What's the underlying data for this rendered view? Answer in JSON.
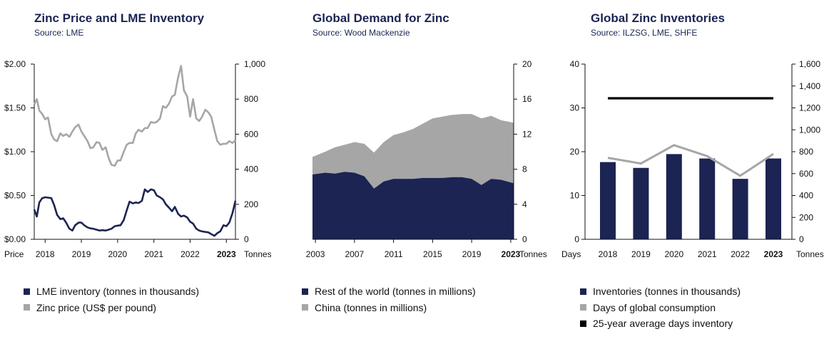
{
  "colors": {
    "navy": "#1b2452",
    "gray": "#a6a6a6",
    "black": "#000000"
  },
  "chart_data": [
    {
      "type": "line",
      "title": "Zinc Price and LME Inventory",
      "subtitle": "Source: LME",
      "left_axis_label": "Price",
      "right_axis_label": "Tonnes",
      "left_ticks": [
        "$0.00",
        "$0.50",
        "$1.00",
        "$1.50",
        "$2.00"
      ],
      "left_ylim": [
        0,
        2
      ],
      "right_ticks": [
        "0",
        "200",
        "400",
        "600",
        "800",
        "1,000"
      ],
      "right_ylim": [
        0,
        1000
      ],
      "x_ticks": [
        "2018",
        "2019",
        "2020",
        "2021",
        "2022",
        "2023"
      ],
      "x_bold": "2023",
      "xlim": [
        2017.7,
        2023.25
      ],
      "series": [
        {
          "name": "LME inventory (tonnes in thousands)",
          "axis": "right",
          "color_key": "navy",
          "x": [
            2017.7,
            2017.77,
            2017.84,
            2017.92,
            2018.0,
            2018.08,
            2018.17,
            2018.25,
            2018.33,
            2018.42,
            2018.5,
            2018.58,
            2018.67,
            2018.75,
            2018.83,
            2018.92,
            2019.0,
            2019.08,
            2019.17,
            2019.25,
            2019.33,
            2019.42,
            2019.5,
            2019.58,
            2019.67,
            2019.75,
            2019.83,
            2019.92,
            2020.0,
            2020.08,
            2020.17,
            2020.25,
            2020.33,
            2020.42,
            2020.5,
            2020.58,
            2020.67,
            2020.75,
            2020.83,
            2020.92,
            2021.0,
            2021.08,
            2021.17,
            2021.25,
            2021.33,
            2021.42,
            2021.5,
            2021.58,
            2021.67,
            2021.75,
            2021.83,
            2021.92,
            2022.0,
            2022.08,
            2022.17,
            2022.25,
            2022.33,
            2022.42,
            2022.5,
            2022.58,
            2022.67,
            2022.75,
            2022.83,
            2022.92,
            2023.0,
            2023.08,
            2023.17,
            2023.25
          ],
          "values": [
            170,
            130,
            210,
            235,
            240,
            238,
            235,
            195,
            140,
            115,
            120,
            95,
            60,
            50,
            80,
            95,
            95,
            80,
            68,
            62,
            60,
            55,
            50,
            52,
            50,
            55,
            60,
            75,
            78,
            80,
            110,
            165,
            215,
            205,
            210,
            207,
            220,
            285,
            270,
            285,
            280,
            250,
            240,
            228,
            200,
            180,
            160,
            185,
            145,
            130,
            135,
            125,
            100,
            90,
            60,
            50,
            45,
            42,
            40,
            30,
            20,
            35,
            45,
            80,
            75,
            95,
            150,
            220
          ]
        },
        {
          "name": "Zinc price (US$ per pound)",
          "axis": "left",
          "color_key": "gray",
          "x": [
            2017.7,
            2017.77,
            2017.84,
            2017.92,
            2018.0,
            2018.08,
            2018.17,
            2018.25,
            2018.33,
            2018.42,
            2018.5,
            2018.58,
            2018.67,
            2018.75,
            2018.83,
            2018.92,
            2019.0,
            2019.08,
            2019.17,
            2019.25,
            2019.33,
            2019.42,
            2019.5,
            2019.58,
            2019.67,
            2019.75,
            2019.83,
            2019.92,
            2020.0,
            2020.08,
            2020.17,
            2020.25,
            2020.33,
            2020.42,
            2020.5,
            2020.58,
            2020.67,
            2020.75,
            2020.83,
            2020.92,
            2021.0,
            2021.08,
            2021.17,
            2021.25,
            2021.33,
            2021.42,
            2021.5,
            2021.58,
            2021.67,
            2021.75,
            2021.83,
            2021.92,
            2022.0,
            2022.08,
            2022.17,
            2022.25,
            2022.33,
            2022.42,
            2022.5,
            2022.58,
            2022.67,
            2022.75,
            2022.83,
            2022.92,
            2023.0,
            2023.08,
            2023.17,
            2023.25
          ],
          "values": [
            1.54,
            1.6,
            1.47,
            1.43,
            1.37,
            1.39,
            1.2,
            1.14,
            1.12,
            1.21,
            1.18,
            1.2,
            1.17,
            1.23,
            1.28,
            1.31,
            1.23,
            1.18,
            1.12,
            1.04,
            1.05,
            1.11,
            1.1,
            1.02,
            1.05,
            0.93,
            0.85,
            0.84,
            0.9,
            0.9,
            1.0,
            1.08,
            1.1,
            1.1,
            1.21,
            1.25,
            1.23,
            1.27,
            1.27,
            1.34,
            1.33,
            1.34,
            1.38,
            1.52,
            1.5,
            1.55,
            1.63,
            1.65,
            1.85,
            1.98,
            1.7,
            1.63,
            1.4,
            1.6,
            1.38,
            1.35,
            1.4,
            1.48,
            1.45,
            1.4,
            1.25,
            1.12,
            1.08,
            1.09,
            1.09,
            1.12,
            1.1,
            1.13
          ]
        }
      ]
    },
    {
      "type": "area",
      "title": "Global Demand for Zinc",
      "subtitle": "Source: Wood Mackenzie",
      "right_axis_label": "Tonnes",
      "right_ticks": [
        "0",
        "4",
        "8",
        "12",
        "16",
        "20"
      ],
      "ylim": [
        0,
        20
      ],
      "x_ticks": [
        "2003",
        "2007",
        "2011",
        "2015",
        "2019",
        "2023"
      ],
      "x_bold": "2023",
      "xlim": [
        2002.7,
        2023.3
      ],
      "x": [
        2002.7,
        2004,
        2005,
        2006,
        2007,
        2008,
        2009,
        2010,
        2011,
        2012,
        2013,
        2014,
        2015,
        2016,
        2017,
        2018,
        2019,
        2020,
        2021,
        2022,
        2023.3
      ],
      "series": [
        {
          "name": "Rest of the world (tonnes in millions)",
          "color_key": "navy",
          "values": [
            7.4,
            7.6,
            7.5,
            7.7,
            7.6,
            7.2,
            5.8,
            6.6,
            6.9,
            6.9,
            6.9,
            7.0,
            7.0,
            7.0,
            7.1,
            7.1,
            6.9,
            6.2,
            6.9,
            6.8,
            6.4
          ]
        },
        {
          "name": "China (tonnes in millions)",
          "color_key": "gray",
          "values": [
            2.0,
            2.4,
            3.0,
            3.1,
            3.5,
            3.7,
            4.1,
            4.5,
            5.0,
            5.3,
            5.7,
            6.2,
            6.8,
            7.0,
            7.1,
            7.2,
            7.4,
            7.6,
            7.2,
            6.8,
            6.9
          ]
        }
      ]
    },
    {
      "type": "bar",
      "title": "Global Zinc Inventories",
      "subtitle": "Source: ILZSG, LME, SHFE",
      "left_axis_label": "Days",
      "right_axis_label": "Tonnes",
      "left_ticks": [
        "0",
        "10",
        "20",
        "30",
        "40"
      ],
      "left_ylim": [
        0,
        40
      ],
      "right_ticks": [
        "0",
        "200",
        "400",
        "600",
        "800",
        "1,000",
        "1,200",
        "1,400",
        "1,600"
      ],
      "right_ylim": [
        0,
        1600
      ],
      "categories": [
        "2018",
        "2019",
        "2020",
        "2021",
        "2022",
        "2023"
      ],
      "x_bold": "2023",
      "series": [
        {
          "name": "Inventories (tonnes in thousands)",
          "kind": "bar",
          "axis": "right",
          "color_key": "navy",
          "values": [
            705,
            652,
            778,
            738,
            552,
            738
          ]
        },
        {
          "name": "Days of global consumption",
          "kind": "line",
          "axis": "left",
          "color_key": "gray",
          "values": [
            18.6,
            17.3,
            21.5,
            19.0,
            14.5,
            19.5
          ]
        },
        {
          "name": "25-year average days inventory",
          "kind": "line",
          "axis": "left",
          "color_key": "black",
          "values": [
            32.2,
            32.2,
            32.2,
            32.2,
            32.2,
            32.2
          ]
        }
      ]
    }
  ]
}
